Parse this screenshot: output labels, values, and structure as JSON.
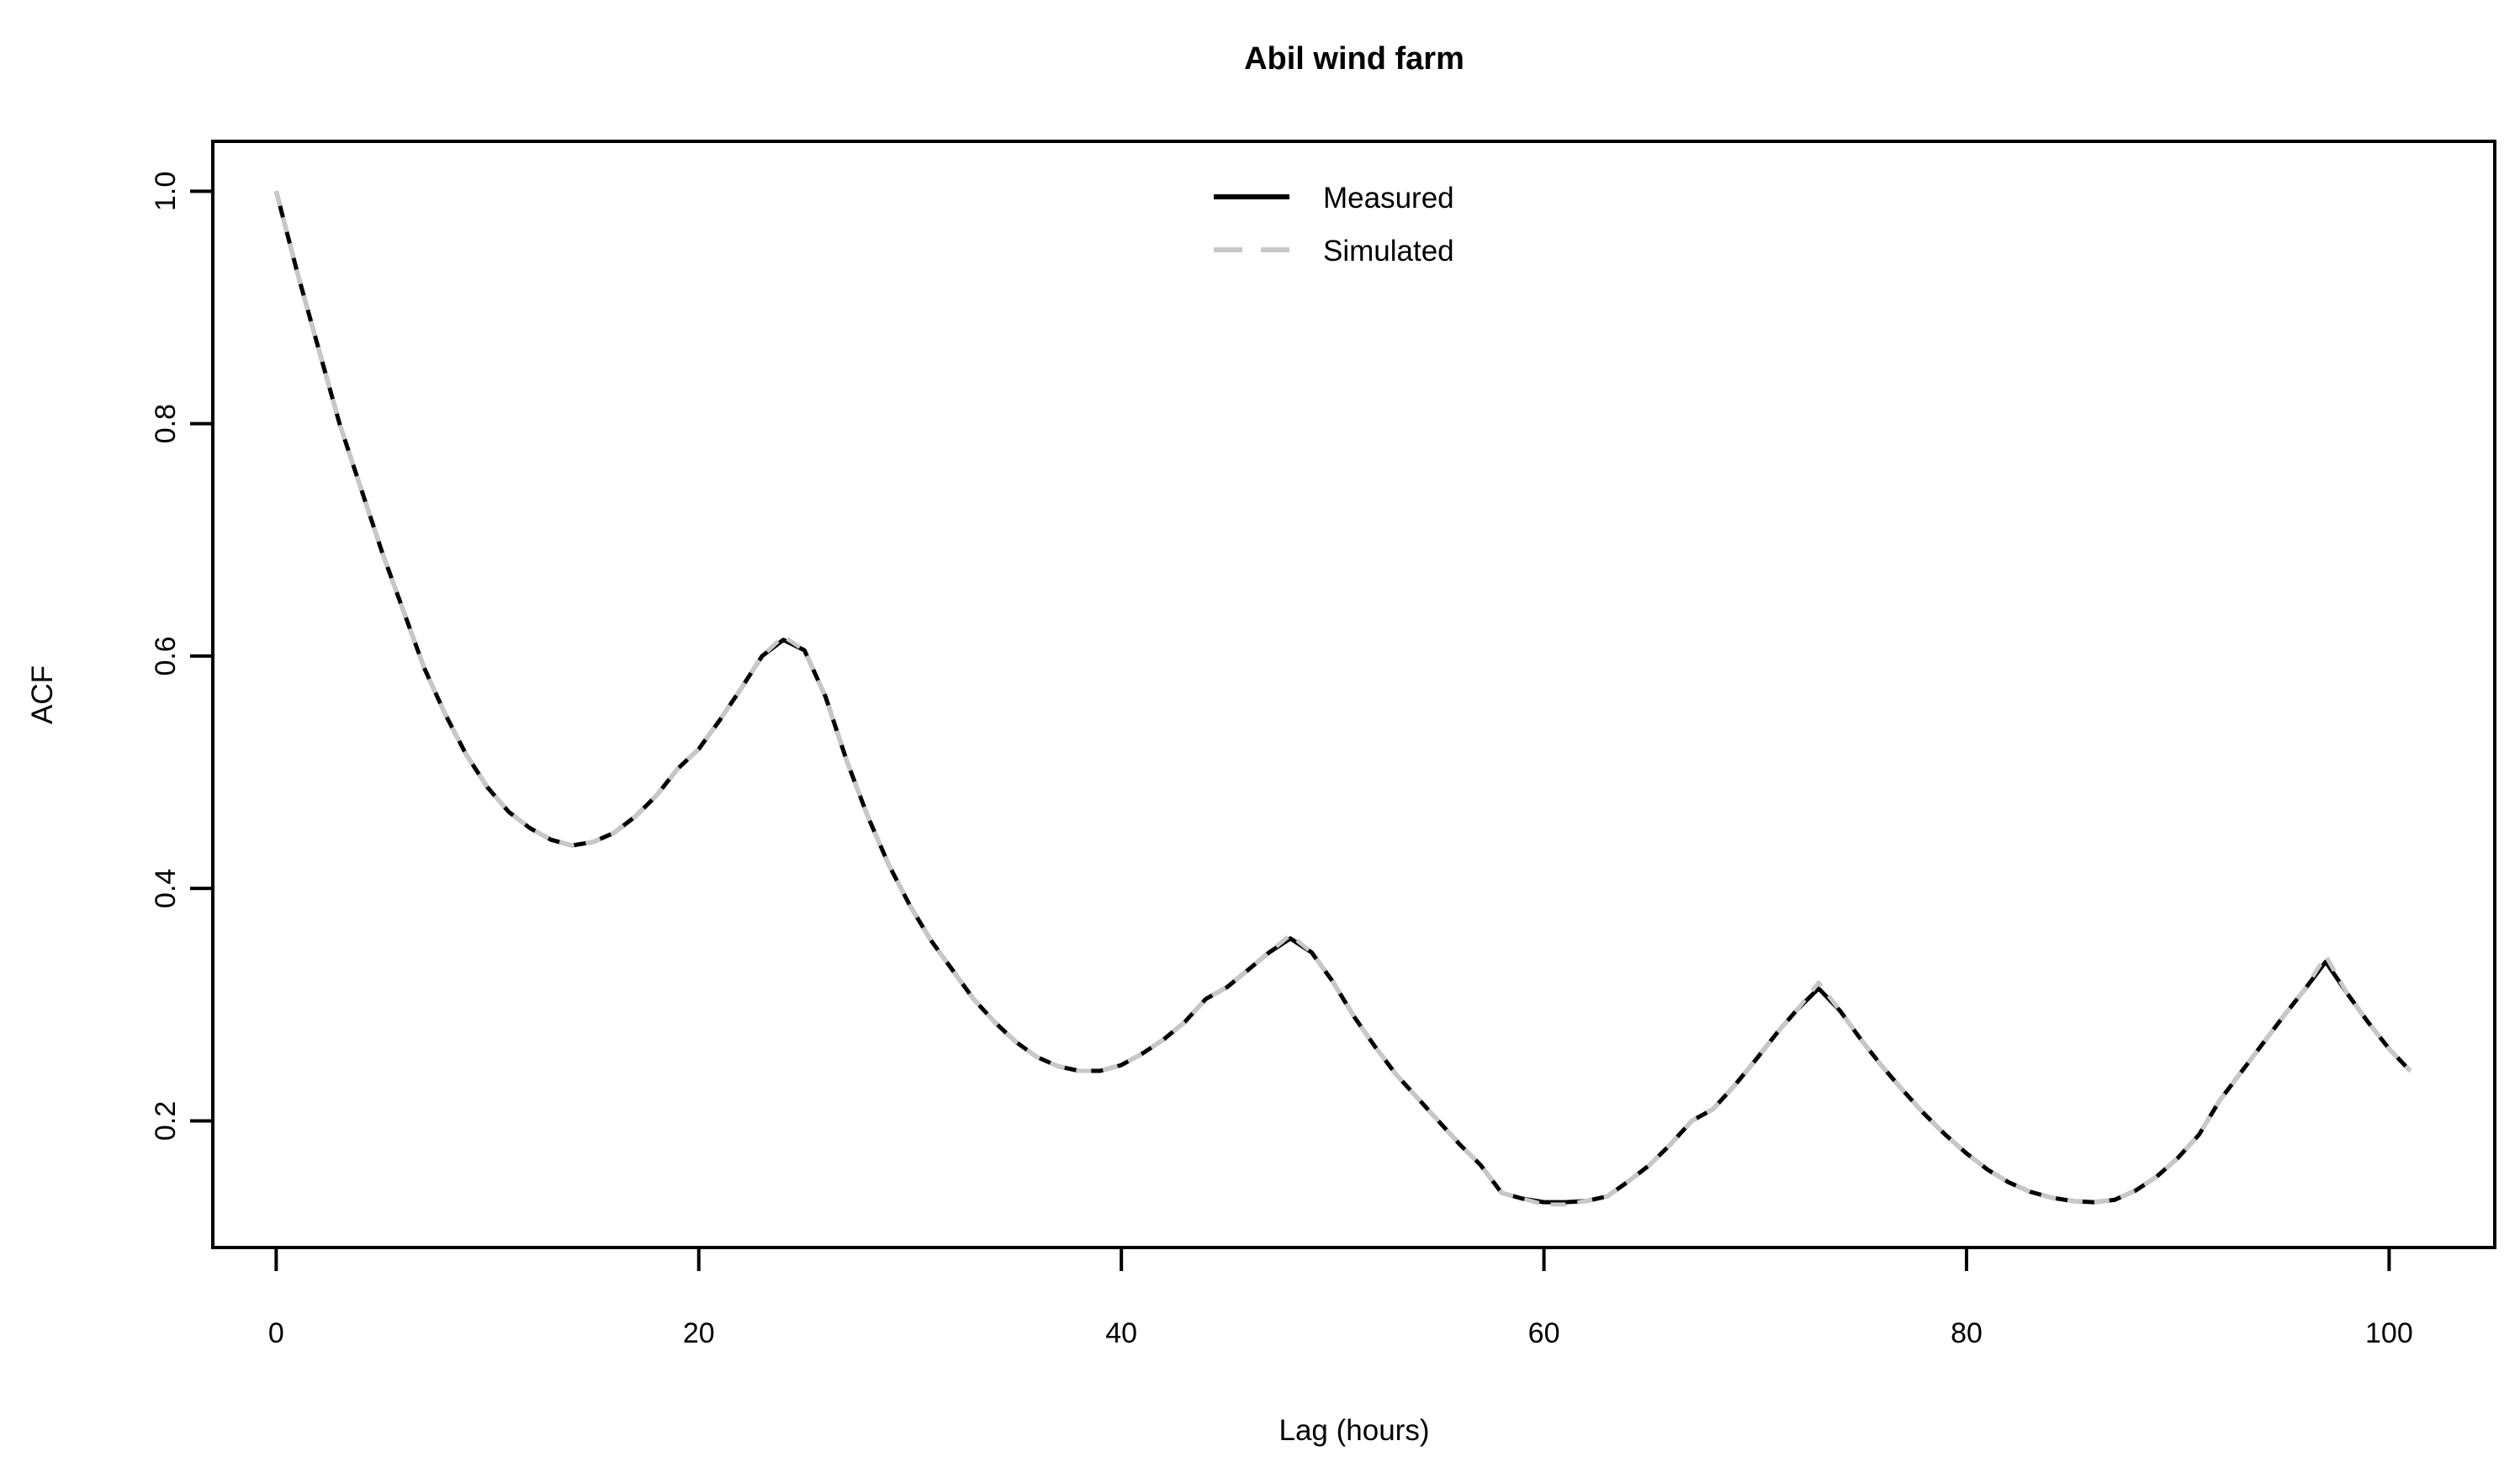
{
  "figure": {
    "background": "#ffffff",
    "frame_color": "#000000"
  },
  "chart_data": {
    "type": "line",
    "title": "Abil wind farm",
    "xlabel": "Lag (hours)",
    "ylabel": "ACF",
    "grid": false,
    "legend_position": "top-center-inside",
    "xlim": [
      -3,
      105
    ],
    "ylim": [
      0.091,
      1.043
    ],
    "x_ticks": [
      0,
      20,
      40,
      60,
      80,
      100
    ],
    "x_tick_labels": [
      "0",
      "20",
      "40",
      "60",
      "80",
      "100"
    ],
    "y_ticks": [
      0.2,
      0.4,
      0.6,
      0.8,
      1.0
    ],
    "y_tick_labels": [
      "0.2",
      "0.4",
      "0.6",
      "0.8",
      "1.0"
    ],
    "x": [
      0,
      1,
      2,
      3,
      4,
      5,
      6,
      7,
      8,
      9,
      10,
      11,
      12,
      13,
      14,
      15,
      16,
      17,
      18,
      19,
      20,
      21,
      22,
      23,
      24,
      25,
      26,
      27,
      28,
      29,
      30,
      31,
      32,
      33,
      34,
      35,
      36,
      37,
      38,
      39,
      40,
      41,
      42,
      43,
      44,
      45,
      46,
      47,
      48,
      49,
      50,
      51,
      52,
      53,
      54,
      55,
      56,
      57,
      58,
      59,
      60,
      61,
      62,
      63,
      64,
      65,
      66,
      67,
      68,
      69,
      70,
      71,
      72,
      73,
      74,
      75,
      76,
      77,
      78,
      79,
      80,
      81,
      82,
      83,
      84,
      85,
      86,
      87,
      88,
      89,
      90,
      91,
      92,
      93,
      94,
      95,
      96,
      97,
      98,
      99,
      100,
      101
    ],
    "series": [
      {
        "name": "Measured",
        "color": "#000000",
        "style": "solid",
        "line_width": 5,
        "values": [
          1.0,
          0.93,
          0.865,
          0.8,
          0.745,
          0.69,
          0.64,
          0.59,
          0.55,
          0.515,
          0.487,
          0.466,
          0.452,
          0.442,
          0.437,
          0.44,
          0.448,
          0.462,
          0.48,
          0.503,
          0.52,
          0.545,
          0.572,
          0.6,
          0.614,
          0.605,
          0.565,
          0.51,
          0.462,
          0.42,
          0.385,
          0.355,
          0.33,
          0.305,
          0.285,
          0.268,
          0.255,
          0.247,
          0.243,
          0.243,
          0.248,
          0.258,
          0.27,
          0.285,
          0.305,
          0.315,
          0.33,
          0.345,
          0.357,
          0.345,
          0.32,
          0.29,
          0.264,
          0.24,
          0.22,
          0.2,
          0.18,
          0.162,
          0.138,
          0.133,
          0.13,
          0.13,
          0.131,
          0.135,
          0.148,
          0.162,
          0.18,
          0.2,
          0.21,
          0.23,
          0.252,
          0.275,
          0.296,
          0.314,
          0.295,
          0.27,
          0.247,
          0.226,
          0.206,
          0.188,
          0.172,
          0.158,
          0.147,
          0.139,
          0.134,
          0.131,
          0.13,
          0.132,
          0.14,
          0.152,
          0.168,
          0.188,
          0.218,
          0.242,
          0.266,
          0.29,
          0.313,
          0.337,
          0.31,
          0.285,
          0.262,
          0.243
        ]
      },
      {
        "name": "Simulated",
        "color": "#c8c8c8",
        "style": "dashed",
        "line_width": 5,
        "values": [
          1.0,
          0.93,
          0.865,
          0.8,
          0.745,
          0.69,
          0.64,
          0.59,
          0.55,
          0.515,
          0.487,
          0.466,
          0.452,
          0.442,
          0.437,
          0.44,
          0.448,
          0.462,
          0.48,
          0.503,
          0.52,
          0.545,
          0.572,
          0.6,
          0.617,
          0.605,
          0.565,
          0.51,
          0.462,
          0.42,
          0.385,
          0.355,
          0.33,
          0.305,
          0.285,
          0.268,
          0.255,
          0.247,
          0.243,
          0.243,
          0.248,
          0.258,
          0.27,
          0.285,
          0.305,
          0.315,
          0.33,
          0.345,
          0.36,
          0.345,
          0.32,
          0.29,
          0.264,
          0.24,
          0.22,
          0.2,
          0.18,
          0.162,
          0.138,
          0.133,
          0.128,
          0.128,
          0.131,
          0.135,
          0.148,
          0.162,
          0.18,
          0.2,
          0.21,
          0.23,
          0.252,
          0.275,
          0.296,
          0.319,
          0.295,
          0.27,
          0.247,
          0.226,
          0.206,
          0.188,
          0.172,
          0.158,
          0.147,
          0.139,
          0.134,
          0.131,
          0.13,
          0.132,
          0.14,
          0.152,
          0.168,
          0.188,
          0.218,
          0.242,
          0.266,
          0.29,
          0.313,
          0.342,
          0.31,
          0.285,
          0.262,
          0.243
        ]
      }
    ]
  }
}
